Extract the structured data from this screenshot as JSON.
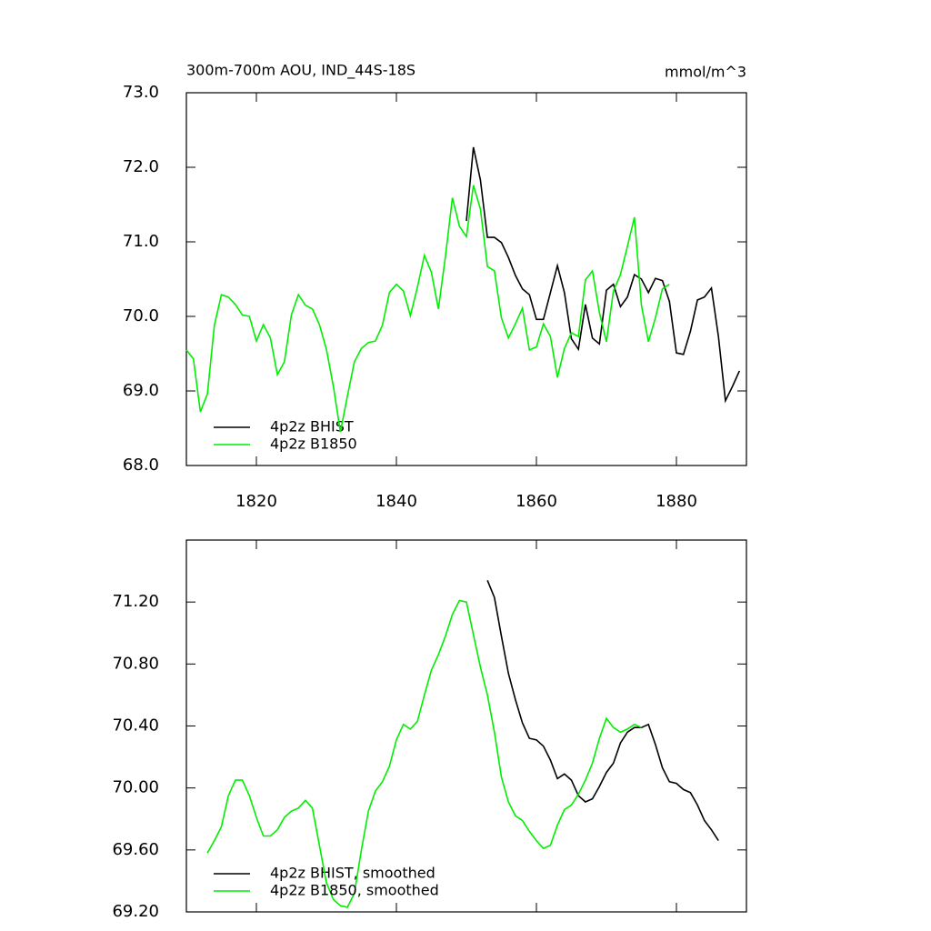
{
  "chart_data": [
    {
      "type": "line",
      "title": "300m-700m AOU, IND_44S-18S",
      "subtitle": "mmol/m^3",
      "xlim": [
        1810,
        1890
      ],
      "xticks": [
        1820,
        1840,
        1860,
        1880
      ],
      "show_xtick_labels": true,
      "ylim": [
        68,
        73
      ],
      "yticks": [
        {
          "value": 68,
          "label": "68.0"
        },
        {
          "value": 69,
          "label": "69.0"
        },
        {
          "value": 70,
          "label": "70.0"
        },
        {
          "value": 71,
          "label": "71.0"
        },
        {
          "value": 72,
          "label": "72.0"
        },
        {
          "value": 73,
          "label": "73.0"
        }
      ],
      "legend": "lower left",
      "series": [
        {
          "name": "4p2z BHIST",
          "color": "#000000",
          "x": [
            1850,
            1851,
            1852,
            1853,
            1854,
            1855,
            1856,
            1857,
            1858,
            1859,
            1860,
            1861,
            1862,
            1863,
            1864,
            1865,
            1866,
            1867,
            1868,
            1869,
            1870,
            1871,
            1872,
            1873,
            1874,
            1875,
            1876,
            1877,
            1878,
            1879,
            1880,
            1881,
            1882,
            1883,
            1884,
            1885,
            1886,
            1887,
            1888,
            1889
          ],
          "values": [
            71.28,
            72.27,
            71.83,
            71.06,
            71.06,
            70.99,
            70.79,
            70.55,
            70.37,
            70.29,
            69.96,
            69.96,
            70.32,
            70.68,
            70.32,
            69.7,
            69.56,
            70.16,
            69.71,
            69.63,
            70.35,
            70.43,
            70.13,
            70.26,
            70.56,
            70.5,
            70.32,
            70.51,
            70.48,
            70.2,
            69.51,
            69.49,
            69.8,
            70.22,
            70.26,
            70.38,
            69.73,
            68.87,
            69.06,
            69.27
          ]
        },
        {
          "name": "4p2z B1850",
          "color": "#00ee00",
          "x": [
            1810,
            1811,
            1812,
            1813,
            1814,
            1815,
            1816,
            1817,
            1818,
            1819,
            1820,
            1821,
            1822,
            1823,
            1824,
            1825,
            1826,
            1827,
            1828,
            1829,
            1830,
            1831,
            1832,
            1833,
            1834,
            1835,
            1836,
            1837,
            1838,
            1839,
            1840,
            1841,
            1842,
            1843,
            1844,
            1845,
            1846,
            1847,
            1848,
            1849,
            1850,
            1851,
            1852,
            1853,
            1854,
            1855,
            1856,
            1857,
            1858,
            1859,
            1860,
            1861,
            1862,
            1863,
            1864,
            1865,
            1866,
            1867,
            1868,
            1869,
            1870,
            1871,
            1872,
            1873,
            1874,
            1875,
            1876,
            1877,
            1878,
            1879
          ],
          "values": [
            69.55,
            69.43,
            68.72,
            68.96,
            69.88,
            70.29,
            70.26,
            70.16,
            70.02,
            70.0,
            69.67,
            69.89,
            69.71,
            69.22,
            69.39,
            70.02,
            70.29,
            70.15,
            70.1,
            69.89,
            69.56,
            69.06,
            68.45,
            68.93,
            69.39,
            69.57,
            69.65,
            69.67,
            69.88,
            70.32,
            70.43,
            70.34,
            70.01,
            70.39,
            70.82,
            70.59,
            70.1,
            70.8,
            71.59,
            71.21,
            71.07,
            71.76,
            71.44,
            70.67,
            70.61,
            69.98,
            69.71,
            69.9,
            70.11,
            69.55,
            69.59,
            69.9,
            69.73,
            69.18,
            69.57,
            69.78,
            69.73,
            70.49,
            70.61,
            70.05,
            69.66,
            70.34,
            70.56,
            70.94,
            71.33,
            70.15,
            69.66,
            69.98,
            70.37,
            70.43
          ]
        }
      ]
    },
    {
      "type": "line",
      "xlim": [
        1810,
        1890
      ],
      "xticks": [
        1820,
        1840,
        1860,
        1880
      ],
      "show_xtick_labels": false,
      "ylim": [
        69.2,
        71.6
      ],
      "yticks": [
        {
          "value": 69.2,
          "label": "69.20"
        },
        {
          "value": 69.6,
          "label": "69.60"
        },
        {
          "value": 70,
          "label": "70.00"
        },
        {
          "value": 70.4,
          "label": "70.40"
        },
        {
          "value": 70.8,
          "label": "70.80"
        },
        {
          "value": 71.2,
          "label": "71.20"
        }
      ],
      "legend": "lower left",
      "series": [
        {
          "name": "4p2z BHIST, smoothed",
          "color": "#000000",
          "x": [
            1853,
            1854,
            1855,
            1856,
            1857,
            1858,
            1859,
            1860,
            1861,
            1862,
            1863,
            1864,
            1865,
            1866,
            1867,
            1868,
            1869,
            1870,
            1871,
            1872,
            1873,
            1874,
            1875,
            1876,
            1877,
            1878,
            1879,
            1880,
            1881,
            1882,
            1883,
            1884,
            1885,
            1886
          ],
          "values": [
            71.34,
            71.23,
            70.98,
            70.74,
            70.57,
            70.42,
            70.32,
            70.31,
            70.27,
            70.18,
            70.06,
            70.09,
            70.05,
            69.95,
            69.91,
            69.93,
            70.01,
            70.1,
            70.16,
            70.29,
            70.36,
            70.39,
            70.39,
            70.41,
            70.28,
            70.13,
            70.04,
            70.03,
            69.99,
            69.97,
            69.89,
            69.79,
            69.73,
            69.66
          ]
        },
        {
          "name": "4p2z B1850, smoothed",
          "color": "#00ee00",
          "x": [
            1813,
            1814,
            1815,
            1816,
            1817,
            1818,
            1819,
            1820,
            1821,
            1822,
            1823,
            1824,
            1825,
            1826,
            1827,
            1828,
            1829,
            1830,
            1831,
            1832,
            1833,
            1834,
            1835,
            1836,
            1837,
            1838,
            1839,
            1840,
            1841,
            1842,
            1843,
            1844,
            1845,
            1846,
            1847,
            1848,
            1849,
            1850,
            1851,
            1852,
            1853,
            1854,
            1855,
            1856,
            1857,
            1858,
            1859,
            1860,
            1861,
            1862,
            1863,
            1864,
            1865,
            1866,
            1867,
            1868,
            1869,
            1870,
            1871,
            1872,
            1873,
            1874,
            1875
          ],
          "values": [
            69.58,
            69.66,
            69.75,
            69.95,
            70.05,
            70.05,
            69.95,
            69.81,
            69.69,
            69.69,
            69.73,
            69.81,
            69.85,
            69.87,
            69.92,
            69.87,
            69.63,
            69.39,
            69.28,
            69.24,
            69.23,
            69.32,
            69.6,
            69.85,
            69.98,
            70.04,
            70.14,
            70.31,
            70.41,
            70.38,
            70.43,
            70.6,
            70.76,
            70.86,
            70.98,
            71.12,
            71.21,
            71.2,
            70.99,
            70.78,
            70.6,
            70.36,
            70.07,
            69.91,
            69.82,
            69.79,
            69.72,
            69.66,
            69.61,
            69.63,
            69.76,
            69.86,
            69.89,
            69.96,
            70.05,
            70.16,
            70.32,
            70.45,
            70.39,
            70.36,
            70.38,
            70.41,
            70.39
          ]
        }
      ]
    }
  ]
}
